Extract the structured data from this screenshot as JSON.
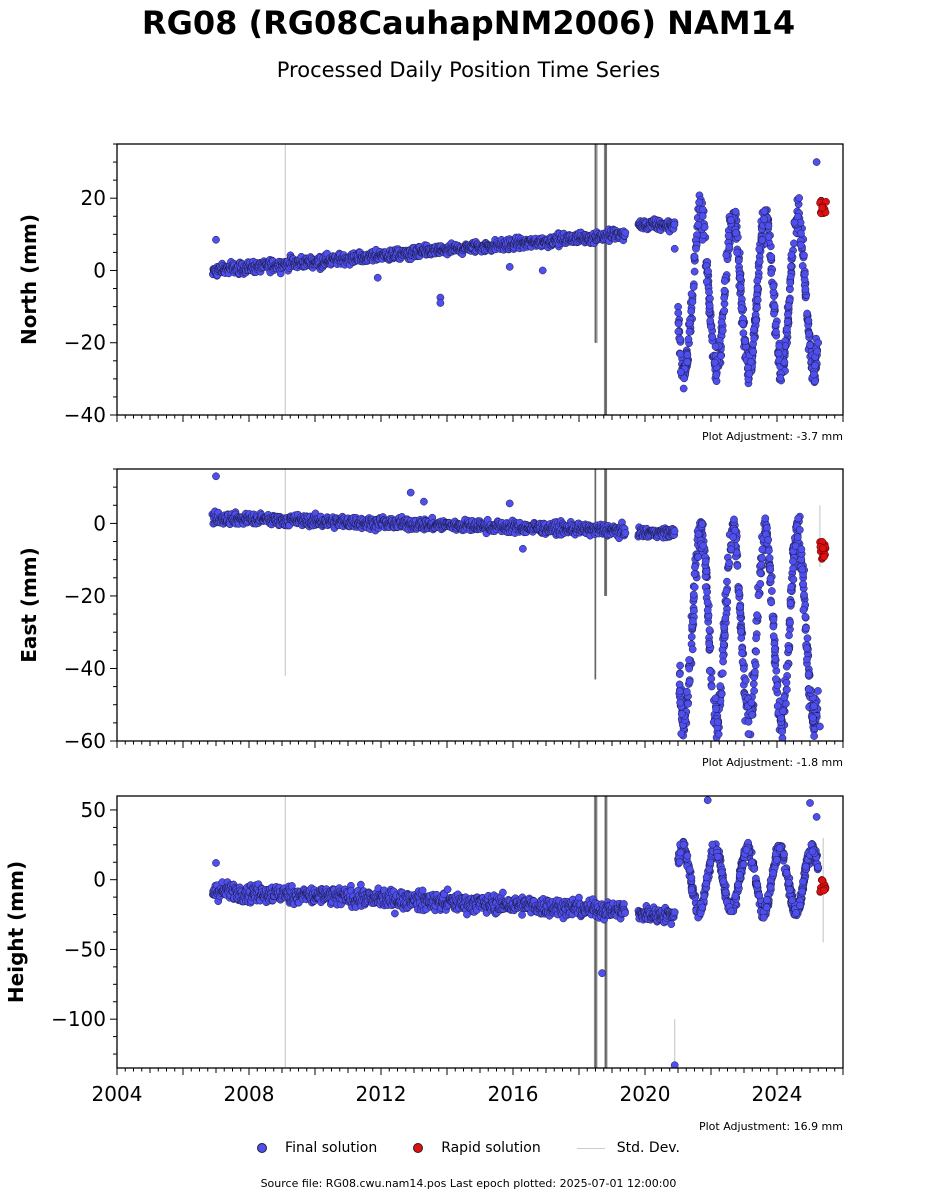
{
  "title": "RG08 (RG08CauhapNM2006) NAM14",
  "subtitle": "Processed Daily Position Time Series",
  "legend": {
    "final": "Final solution",
    "rapid": "Rapid solution",
    "std": "Std. Dev."
  },
  "footer": "Source file: RG08.cwu.nam14.pos  Last epoch plotted: 2025-07-01 12:00:00",
  "colors": {
    "final": "#4f4ff0",
    "rapid": "#e01010",
    "std": "#cccccc",
    "std_dark": "#666666"
  },
  "chart_data": [
    {
      "type": "scatter",
      "ylabel": "North (mm)",
      "adjustment": "Plot Adjustment: -3.7 mm",
      "xlim": [
        2004,
        2026
      ],
      "ylim": [
        -40,
        35
      ],
      "yticks": [
        -40,
        -20,
        0,
        20
      ],
      "ytick_labels": [
        "−40",
        "−20",
        "0",
        "20"
      ],
      "series": [
        {
          "name": "Final solution",
          "segments": [
            {
              "x_start": 2006.9,
              "x_end": 2019.4,
              "y_start": 0,
              "y_end": 10,
              "spread": 2.2
            },
            {
              "x_start": 2019.8,
              "x_end": 2020.9,
              "y_start": 12.5,
              "y_end": 12.5,
              "spread": 2
            }
          ],
          "oscillations": [
            {
              "x_start": 2021.0,
              "x_end": 2025.25,
              "center": -6,
              "amplitude": 21,
              "period": 0.98,
              "phase": 0.55
            }
          ],
          "outliers": [
            [
              2007.0,
              8.5
            ],
            [
              2013.8,
              -7.5
            ],
            [
              2013.8,
              -9
            ],
            [
              2011.9,
              -2
            ],
            [
              2015.9,
              1
            ],
            [
              2016.9,
              0
            ],
            [
              2025.2,
              30
            ],
            [
              2020.9,
              6
            ]
          ]
        },
        {
          "name": "Rapid solution",
          "x_range": [
            2025.3,
            2025.5
          ],
          "values": [
            15.5,
            20
          ]
        }
      ],
      "std_spikes": [
        {
          "x": 2009.1,
          "lo": -40,
          "hi": 35,
          "color": "light"
        },
        {
          "x": 2018.5,
          "lo": -20,
          "hi": 35,
          "color": "dark"
        },
        {
          "x": 2018.8,
          "lo": -40,
          "hi": 35,
          "color": "dark"
        }
      ]
    },
    {
      "type": "scatter",
      "ylabel": "East (mm)",
      "adjustment": "Plot Adjustment: -1.8 mm",
      "xlim": [
        2004,
        2026
      ],
      "ylim": [
        -60,
        15
      ],
      "yticks": [
        -60,
        -40,
        -20,
        0
      ],
      "ytick_labels": [
        "−60",
        "−40",
        "−20",
        "0"
      ],
      "series": [
        {
          "name": "Final solution",
          "segments": [
            {
              "x_start": 2006.9,
              "x_end": 2019.4,
              "y_start": 1.5,
              "y_end": -2,
              "spread": 2.2
            },
            {
              "x_start": 2019.8,
              "x_end": 2020.9,
              "y_start": -2.5,
              "y_end": -2.5,
              "spread": 1.8
            }
          ],
          "oscillations": [
            {
              "x_start": 2021.0,
              "x_end": 2025.25,
              "center": -28,
              "amplitude": 26,
              "period": 0.98,
              "phase": 0.55
            }
          ],
          "outliers": [
            [
              2007.0,
              13
            ],
            [
              2012.9,
              8.5
            ],
            [
              2015.9,
              5.5
            ],
            [
              2013.3,
              6
            ],
            [
              2016.3,
              -7
            ],
            [
              2021.1,
              -58
            ],
            [
              2025.3,
              -56
            ]
          ]
        },
        {
          "name": "Rapid solution",
          "x_range": [
            2025.3,
            2025.5
          ],
          "values": [
            -10,
            -5
          ]
        }
      ],
      "std_spikes": [
        {
          "x": 2009.1,
          "lo": -42,
          "hi": 15,
          "color": "light"
        },
        {
          "x": 2018.5,
          "lo": -43,
          "hi": 15,
          "color": "dark"
        },
        {
          "x": 2018.8,
          "lo": -20,
          "hi": 15,
          "color": "dark"
        },
        {
          "x": 2025.3,
          "lo": -12,
          "hi": 5,
          "color": "light"
        }
      ]
    },
    {
      "type": "scatter",
      "ylabel": "Height (mm)",
      "adjustment": "Plot Adjustment: 16.9 mm",
      "xlim": [
        2004,
        2026
      ],
      "ylim": [
        -135,
        60
      ],
      "yticks": [
        -100,
        -50,
        0,
        50
      ],
      "ytick_labels": [
        "−100",
        "−50",
        "0",
        "50"
      ],
      "xticks": [
        2004,
        2008,
        2012,
        2016,
        2020,
        2024
      ],
      "xtick_labels": [
        "2004",
        "2008",
        "2012",
        "2016",
        "2020",
        "2024"
      ],
      "series": [
        {
          "name": "Final solution",
          "segments": [
            {
              "x_start": 2006.9,
              "x_end": 2019.4,
              "y_start": -8,
              "y_end": -22,
              "spread": 9
            },
            {
              "x_start": 2019.8,
              "x_end": 2020.9,
              "y_start": -25,
              "y_end": -25,
              "spread": 7
            }
          ],
          "oscillations": [
            {
              "x_start": 2021.0,
              "x_end": 2025.25,
              "center": 0,
              "amplitude": 22,
              "period": 0.98,
              "phase": 0.1
            }
          ],
          "outliers": [
            [
              2007.0,
              12
            ],
            [
              2021.9,
              57
            ],
            [
              2025.0,
              55
            ],
            [
              2018.7,
              -67
            ],
            [
              2020.9,
              -133
            ],
            [
              2025.2,
              45
            ]
          ]
        },
        {
          "name": "Rapid solution",
          "x_range": [
            2025.3,
            2025.5
          ],
          "values": [
            -10,
            0
          ]
        }
      ],
      "std_spikes": [
        {
          "x": 2009.1,
          "lo": -135,
          "hi": 60,
          "color": "light"
        },
        {
          "x": 2018.5,
          "lo": -135,
          "hi": 60,
          "color": "dark"
        },
        {
          "x": 2018.8,
          "lo": -135,
          "hi": 60,
          "color": "dark"
        },
        {
          "x": 2020.9,
          "lo": -135,
          "hi": -100,
          "color": "light"
        },
        {
          "x": 2025.4,
          "lo": -45,
          "hi": 30,
          "color": "light"
        }
      ]
    }
  ]
}
